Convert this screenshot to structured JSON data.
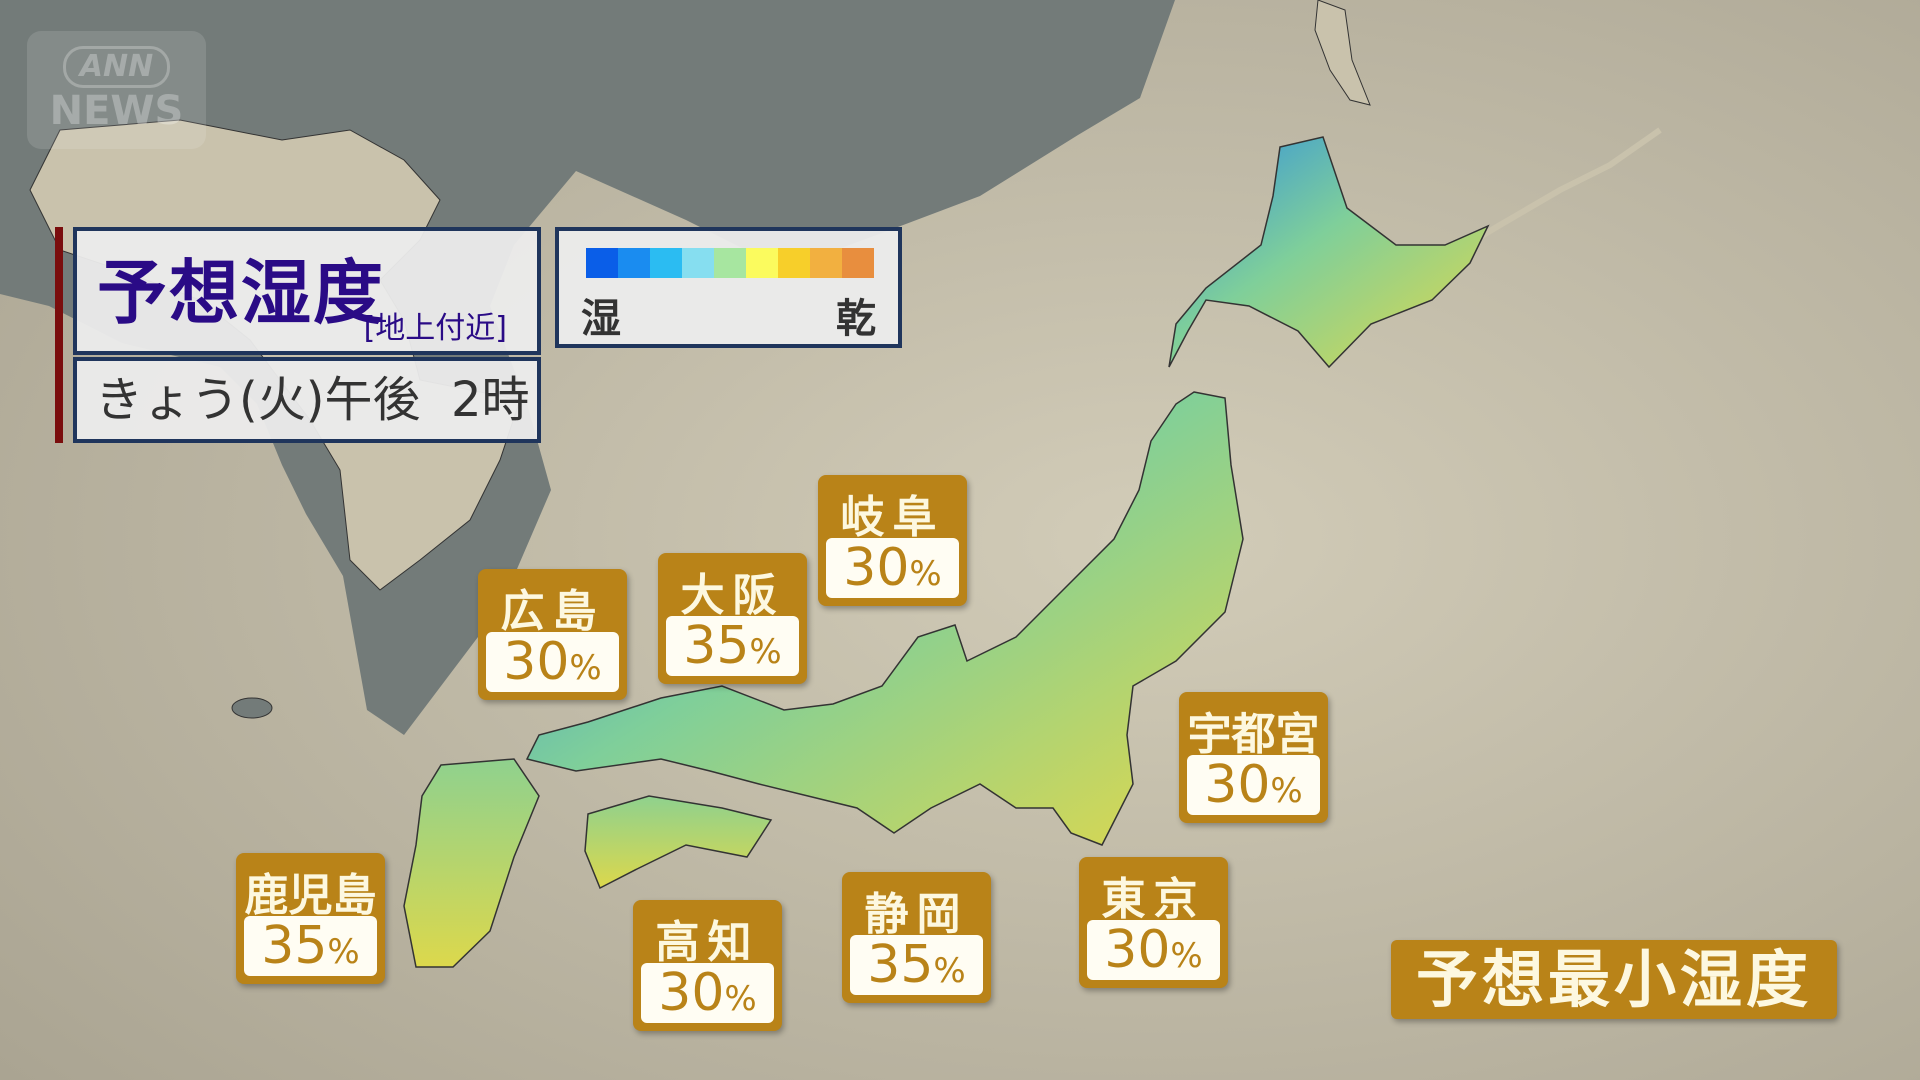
{
  "logo": {
    "line1": "ANN",
    "line2": "NEWS"
  },
  "header": {
    "title": "予想湿度",
    "subtitle": "[地上付近]",
    "datetime": "きょう(火)午後  2時"
  },
  "legend": {
    "wet_label": "湿",
    "dry_label": "乾",
    "colors": [
      "#0a5ee8",
      "#1a8cf0",
      "#2bbcf2",
      "#86def0",
      "#a7e6a0",
      "#fbfb5e",
      "#f7cf2a",
      "#f2b040",
      "#e88e3e"
    ]
  },
  "cities": [
    {
      "name": "広島",
      "value": "30",
      "unit": "%"
    },
    {
      "name": "大阪",
      "value": "35",
      "unit": "%"
    },
    {
      "name": "岐阜",
      "value": "30",
      "unit": "%"
    },
    {
      "name": "宇都宮",
      "value": "30",
      "unit": "%"
    },
    {
      "name": "東京",
      "value": "30",
      "unit": "%"
    },
    {
      "name": "静岡",
      "value": "35",
      "unit": "%"
    },
    {
      "name": "高知",
      "value": "30",
      "unit": "%"
    },
    {
      "name": "鹿児島",
      "value": "35",
      "unit": "%"
    }
  ],
  "banner": "予想最小湿度",
  "colors": {
    "sea": "#737b79",
    "land": "#c6bfaa",
    "label_bg": "#b98318",
    "title_text": "#2a0b86"
  }
}
